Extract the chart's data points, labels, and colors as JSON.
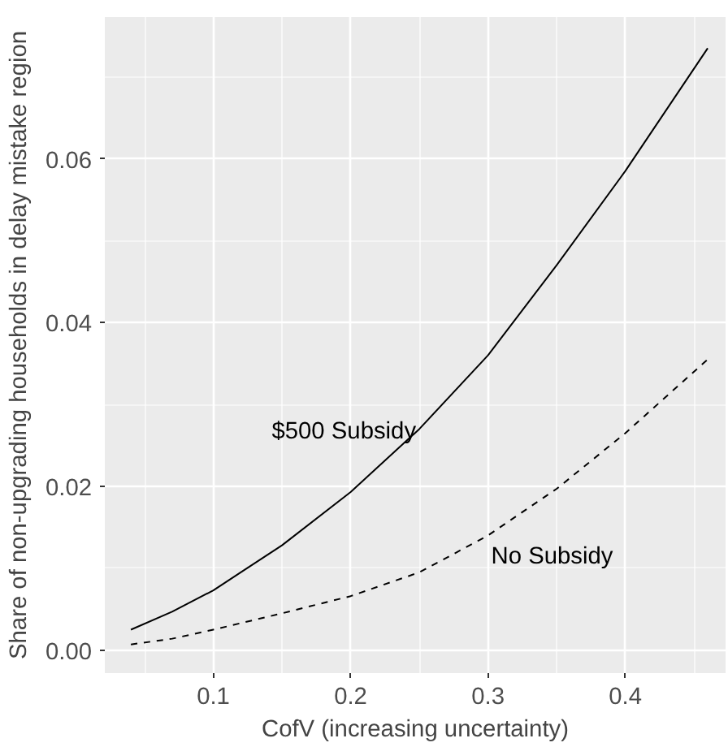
{
  "chart_data": {
    "type": "line",
    "xlabel": "CofV (increasing uncertainty)",
    "ylabel": "Share of non-upgrading households in delay mistake region",
    "xlim": [
      0.021,
      0.473
    ],
    "ylim": [
      -0.0028,
      0.0773
    ],
    "xticks": [
      0.1,
      0.2,
      0.3,
      0.4
    ],
    "yticks": [
      {
        "value": 0,
        "label": "0.00"
      },
      {
        "value": 0.02,
        "label": "0.02"
      },
      {
        "value": 0.04,
        "label": "0.04"
      },
      {
        "value": 0.06,
        "label": "0.06"
      }
    ],
    "grid": true,
    "marker": "none",
    "series": [
      {
        "name": "$500 Subsidy",
        "color": "#000000",
        "line_style": "solid",
        "x": [
          0.04,
          0.07,
          0.1,
          0.12,
          0.15,
          0.2,
          0.25,
          0.3,
          0.35,
          0.4,
          0.46
        ],
        "values": [
          0.0025,
          0.0047,
          0.0073,
          0.0095,
          0.0128,
          0.0193,
          0.027,
          0.036,
          0.047,
          0.0585,
          0.0735
        ]
      },
      {
        "name": "No Subsidy",
        "color": "#000000",
        "line_style": "dashed",
        "x": [
          0.04,
          0.07,
          0.1,
          0.15,
          0.2,
          0.25,
          0.3,
          0.35,
          0.4,
          0.46
        ],
        "values": [
          0.0007,
          0.0014,
          0.0025,
          0.0045,
          0.0066,
          0.0095,
          0.014,
          0.0197,
          0.0265,
          0.0355
        ]
      }
    ]
  }
}
